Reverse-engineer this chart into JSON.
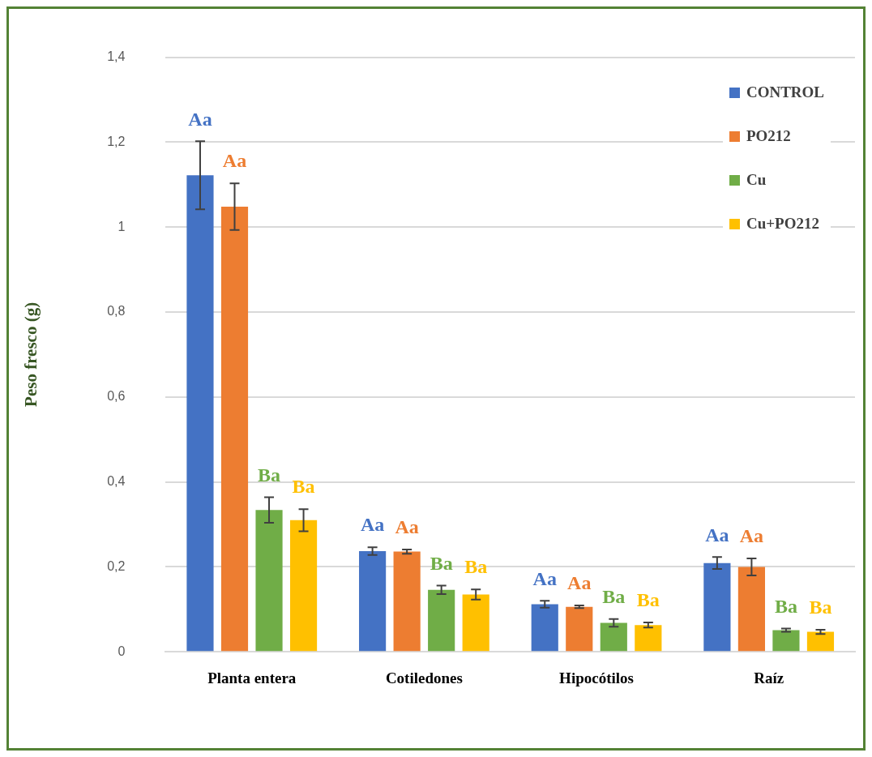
{
  "chart_data": {
    "type": "bar",
    "ylabel": "Peso fresco (g)",
    "categories": [
      "Planta entera",
      "Cotiledones",
      "Hipocótilos",
      "Raíz"
    ],
    "series": [
      {
        "name": "CONTROL",
        "color": "#4472c4",
        "values": [
          1.122,
          0.237,
          0.112,
          0.209
        ],
        "errors": [
          0.08,
          0.009,
          0.008,
          0.014
        ],
        "value_labels": [
          "Aa",
          "Aa",
          "Aa",
          "Aa"
        ]
      },
      {
        "name": "PO212",
        "color": "#ed7d31",
        "values": [
          1.048,
          0.236,
          0.106,
          0.2
        ],
        "errors": [
          0.055,
          0.005,
          0.003,
          0.02
        ],
        "value_labels": [
          "Aa",
          "Aa",
          "Aa",
          "Aa"
        ]
      },
      {
        "name": "Cu",
        "color": "#70ad47",
        "values": [
          0.334,
          0.146,
          0.068,
          0.051
        ],
        "errors": [
          0.03,
          0.01,
          0.009,
          0.004
        ],
        "value_labels": [
          "Ba",
          "Ba",
          "Ba",
          "Ba"
        ]
      },
      {
        "name": "Cu+PO212",
        "color": "#ffc000",
        "values": [
          0.31,
          0.135,
          0.063,
          0.047
        ],
        "errors": [
          0.026,
          0.012,
          0.006,
          0.005
        ],
        "value_labels": [
          "Ba",
          "Ba",
          "Ba",
          "Ba"
        ]
      }
    ],
    "ylim": [
      0,
      1.4
    ],
    "yticks": [
      0,
      {
        "value": 0.2,
        "label": "0,2"
      },
      {
        "value": 0.4,
        "label": "0,4"
      },
      {
        "value": 0.6,
        "label": "0,6"
      },
      {
        "value": 0.8,
        "label": "0,8"
      },
      1,
      {
        "value": 1.2,
        "label": "1,2"
      },
      {
        "value": 1.4,
        "label": "1,4"
      }
    ],
    "grid": "y",
    "legend": "top right"
  }
}
